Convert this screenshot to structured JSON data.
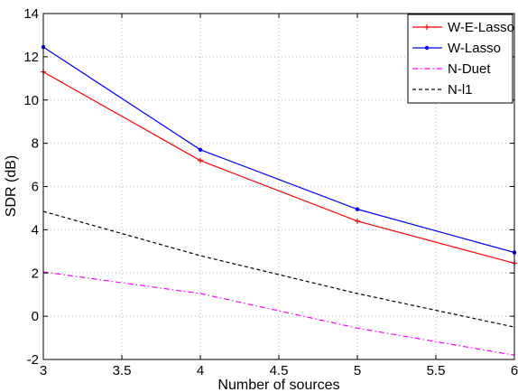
{
  "chart_data": {
    "type": "line",
    "title": "",
    "xlabel": "Number of sources",
    "ylabel": "SDR (dB)",
    "xlim": [
      3,
      6
    ],
    "ylim": [
      -2,
      14
    ],
    "x_ticks": [
      3,
      3.5,
      4,
      4.5,
      5,
      5.5,
      6
    ],
    "x_tick_labels": [
      "3",
      "3.5",
      "4",
      "4.5",
      "5",
      "5.5",
      "6"
    ],
    "y_ticks": [
      -2,
      0,
      2,
      4,
      6,
      8,
      10,
      12,
      14
    ],
    "y_tick_labels": [
      "-2",
      "0",
      "2",
      "4",
      "6",
      "8",
      "10",
      "12",
      "14"
    ],
    "grid": true,
    "legend_position": "top-right",
    "x": [
      3,
      4,
      5,
      6
    ],
    "series": [
      {
        "name": "W-E-Lasso",
        "values": [
          11.3,
          7.2,
          4.4,
          2.45
        ],
        "color": "#ff0000",
        "style": "solid",
        "marker": "plus"
      },
      {
        "name": "W-Lasso",
        "values": [
          12.45,
          7.7,
          4.95,
          2.95
        ],
        "color": "#0000ff",
        "style": "solid",
        "marker": "dot"
      },
      {
        "name": "N-Duet",
        "values": [
          2.05,
          1.05,
          -0.55,
          -1.8
        ],
        "color": "#ff00ff",
        "style": "dashdot",
        "marker": "none"
      },
      {
        "name": "N-l1",
        "values": [
          4.85,
          2.8,
          1.05,
          -0.5
        ],
        "color": "#000000",
        "style": "dashed",
        "marker": "none"
      }
    ]
  }
}
